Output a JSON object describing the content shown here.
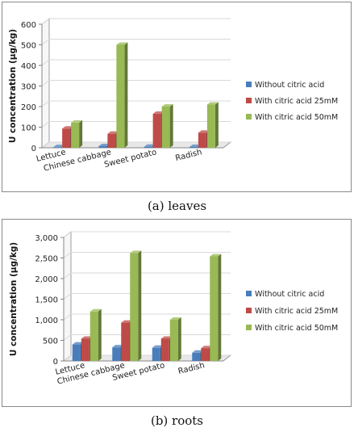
{
  "captions": {
    "a": "(a) leaves",
    "b": "(b) roots"
  },
  "colors": {
    "without": "#4a7ebb",
    "c25": "#be4b48",
    "c50": "#98b954",
    "axis": "#868686",
    "grid": "#d9d9d9"
  },
  "chart_data": [
    {
      "type": "bar",
      "panel": "leaves",
      "categories": [
        "Lettuce",
        "Chinese cabbage",
        "Sweet potato",
        "Radish"
      ],
      "ylabel": "U concentration  (μg/kg)",
      "ylim": [
        0,
        600
      ],
      "yticks": [
        "0",
        "100",
        "200",
        "300",
        "400",
        "500",
        "600"
      ],
      "grid": true,
      "legend_position": "right",
      "series": [
        {
          "name": "Without citric acid",
          "values": [
            3,
            8,
            5,
            4
          ]
        },
        {
          "name": "With citric acid 25mM",
          "values": [
            93,
            68,
            165,
            73
          ]
        },
        {
          "name": "With citric acid 50mM",
          "values": [
            122,
            500,
            200,
            210
          ]
        }
      ]
    },
    {
      "type": "bar",
      "panel": "roots",
      "categories": [
        "Lettuce",
        "Chinese cabbage",
        "Sweet potato",
        "Radish"
      ],
      "ylabel": "U concentration  (μg/kg)",
      "ylim": [
        0,
        3000
      ],
      "yticks": [
        "0",
        "500",
        "1,000",
        "1,500",
        "2,000",
        "2,500",
        "3,000"
      ],
      "grid": true,
      "legend_position": "right",
      "series": [
        {
          "name": "Without citric acid",
          "values": [
            400,
            330,
            320,
            200
          ]
        },
        {
          "name": "With citric acid 25mM",
          "values": [
            540,
            930,
            540,
            310
          ]
        },
        {
          "name": "With citric acid 50mM",
          "values": [
            1200,
            2620,
            1000,
            2540
          ]
        }
      ]
    }
  ]
}
